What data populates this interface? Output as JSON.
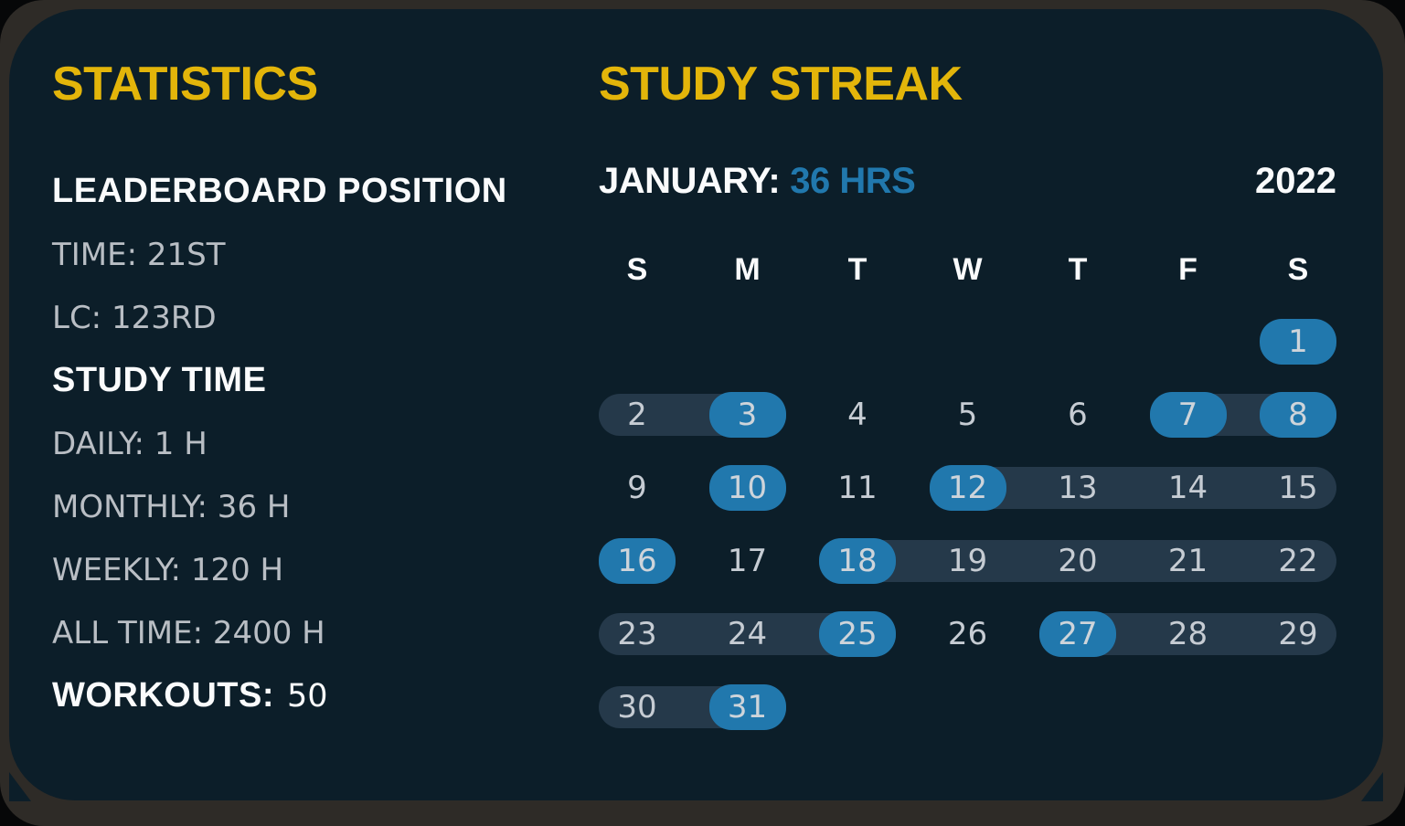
{
  "colors": {
    "frame_bg": "#2e2b27",
    "card_bg": "#0c1e29",
    "accent_yellow": "#e3b50a",
    "accent_blue": "#2178ad",
    "streak_range_pill": "#25394a",
    "item_text_gray": "#b9bec4",
    "day_text_gray": "#c6ccd3",
    "white": "#fafbfc"
  },
  "statistics": {
    "title": "STATISTICS",
    "lines": [
      {
        "type": "heading",
        "text": "LEADERBOARD POSITION"
      },
      {
        "type": "item",
        "text": "TIME: 21ST"
      },
      {
        "type": "item",
        "text": "LC: 123RD"
      },
      {
        "type": "heading",
        "text": "STUDY TIME"
      },
      {
        "type": "item",
        "text": "DAILY: 1 H"
      },
      {
        "type": "item",
        "text": "MONTHLY: 36 H"
      },
      {
        "type": "item",
        "text": "WEEKLY: 120 H"
      },
      {
        "type": "item",
        "text": "ALL TIME: 2400 H"
      }
    ],
    "workouts_label": "WORKOUTS:",
    "workouts_value": "50"
  },
  "study_streak": {
    "title": "STUDY STREAK",
    "month_label": "JANUARY:",
    "month_hours": "36 HRS",
    "year": "2022",
    "weekdays": [
      "S",
      "M",
      "T",
      "W",
      "T",
      "F",
      "S"
    ],
    "calendar": {
      "first_day_col": 6,
      "num_days": 31,
      "studied_days": [
        1,
        3,
        7,
        8,
        10,
        12,
        16,
        18,
        25,
        27,
        31
      ],
      "streak_ranges": [
        [
          2,
          3
        ],
        [
          7,
          8
        ],
        [
          12,
          15
        ],
        [
          18,
          22
        ],
        [
          23,
          25
        ],
        [
          27,
          29
        ],
        [
          30,
          31
        ]
      ]
    }
  }
}
